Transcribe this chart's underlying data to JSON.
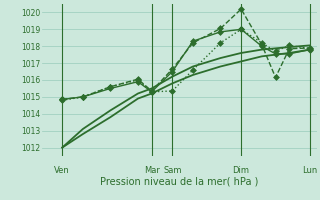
{
  "background_color": "#cce8dc",
  "grid_color": "#99ccbb",
  "line_color": "#2d6e2d",
  "xlabel": "Pression niveau de la mer( hPa )",
  "ylim": [
    1011.5,
    1020.5
  ],
  "yticks": [
    1012,
    1013,
    1014,
    1015,
    1016,
    1017,
    1018,
    1019,
    1020
  ],
  "xlim": [
    0,
    20
  ],
  "vline_positions": [
    1.5,
    8.0,
    9.5,
    14.5,
    19.5
  ],
  "xtick_day_labels": [
    {
      "label": "Ven",
      "x": 1.5
    },
    {
      "label": "Mar",
      "x": 8.0
    },
    {
      "label": "Sam",
      "x": 9.5
    },
    {
      "label": "Dim",
      "x": 14.5
    },
    {
      "label": "Lun",
      "x": 19.5
    }
  ],
  "series": [
    {
      "x": [
        1.5,
        3,
        5,
        7,
        8,
        9.5,
        11,
        13,
        14.5,
        16,
        18,
        19.5
      ],
      "y": [
        1012.0,
        1012.8,
        1013.8,
        1014.9,
        1015.2,
        1015.8,
        1016.3,
        1016.8,
        1017.1,
        1017.4,
        1017.6,
        1017.8
      ],
      "style": "-",
      "marker": null,
      "linewidth": 1.3,
      "color": "#2d6e2d"
    },
    {
      "x": [
        1.5,
        3,
        5,
        7,
        8,
        9.5,
        11,
        13,
        14.5,
        16,
        18,
        19.5
      ],
      "y": [
        1012.0,
        1013.1,
        1014.2,
        1015.2,
        1015.5,
        1016.2,
        1016.8,
        1017.3,
        1017.6,
        1017.8,
        1017.95,
        1018.05
      ],
      "style": "-",
      "marker": null,
      "linewidth": 1.3,
      "color": "#2d6e2d"
    },
    {
      "x": [
        1.5,
        3,
        5,
        7,
        8,
        9.5,
        11,
        13,
        14.5,
        16,
        17,
        18,
        19.5
      ],
      "y": [
        1014.8,
        1015.0,
        1015.6,
        1016.0,
        1015.3,
        1015.35,
        1016.6,
        1018.2,
        1019.0,
        1018.2,
        1017.7,
        1018.05,
        1017.85
      ],
      "style": ":",
      "marker": "D",
      "markersize": 3,
      "linewidth": 1.0,
      "color": "#2d6e2d"
    },
    {
      "x": [
        1.5,
        3,
        5,
        7,
        8,
        9.5,
        11,
        13,
        14.5,
        16,
        17,
        18,
        19.5
      ],
      "y": [
        1014.85,
        1015.0,
        1015.6,
        1016.05,
        1015.35,
        1016.65,
        1018.2,
        1019.05,
        1020.2,
        1018.1,
        1016.15,
        1017.85,
        1017.9
      ],
      "style": "--",
      "marker": "D",
      "markersize": 3,
      "linewidth": 1.0,
      "color": "#2d6e2d"
    },
    {
      "x": [
        1.5,
        3,
        5,
        7,
        8,
        9.5,
        11,
        13,
        14.5,
        16,
        17,
        18,
        19.5
      ],
      "y": [
        1014.85,
        1015.0,
        1015.5,
        1015.9,
        1015.3,
        1016.5,
        1018.3,
        1018.85,
        1019.0,
        1018.0,
        1017.55,
        1017.55,
        1017.8
      ],
      "style": "-",
      "marker": "D",
      "markersize": 3,
      "linewidth": 1.0,
      "color": "#2d6e2d"
    }
  ]
}
